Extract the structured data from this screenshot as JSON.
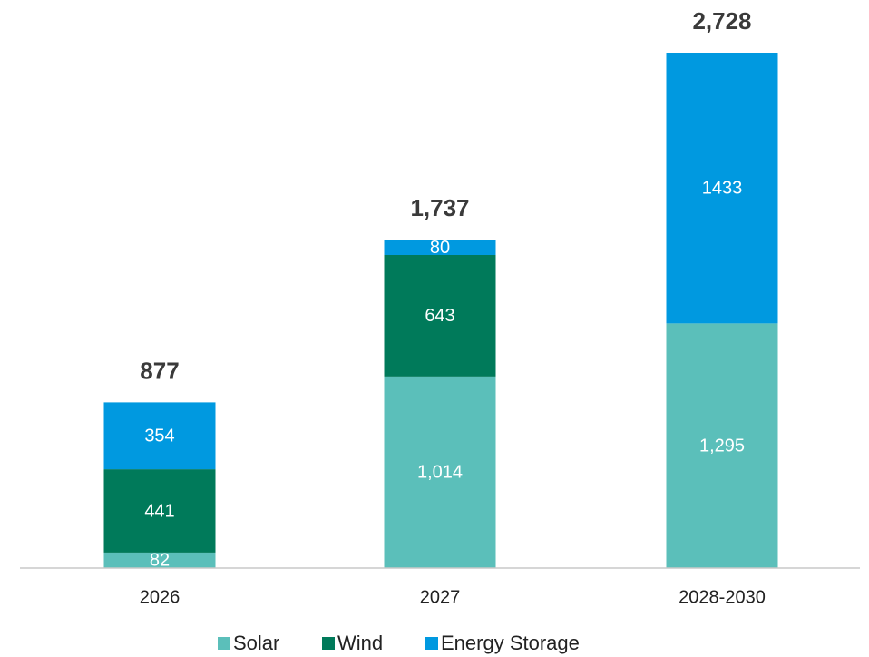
{
  "chart_data": {
    "type": "stacked_bar",
    "categories": [
      "2026",
      "2027",
      "2028-2030"
    ],
    "series": [
      {
        "name": "Solar",
        "color": "#5bbfba",
        "values": [
          82,
          1014,
          1295
        ],
        "value_labels": [
          "82",
          "1,014",
          "1,295"
        ]
      },
      {
        "name": "Wind",
        "color": "#007a5a",
        "values": [
          441,
          643,
          null
        ]
      },
      {
        "name": "Energy Storage",
        "color": "#0099e0",
        "values": [
          354,
          80,
          1433
        ]
      }
    ],
    "totals": [
      877,
      1737,
      2728
    ],
    "total_labels": [
      "877",
      "1,737",
      "2,728"
    ],
    "ylim": [
      0,
      2728
    ],
    "grid": false
  }
}
